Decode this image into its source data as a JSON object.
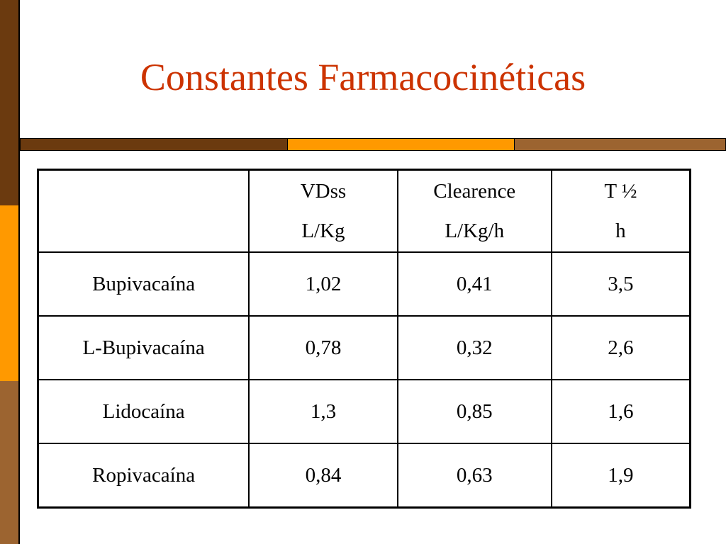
{
  "title": "Constantes Farmacocinéticas",
  "table": {
    "header": [
      [
        "VDss",
        "L/Kg"
      ],
      [
        "Clearence",
        "L/Kg/h"
      ],
      [
        "T ½",
        "h"
      ]
    ],
    "rows": [
      [
        "Bupivacaína",
        "1,02",
        "0,41",
        "3,5"
      ],
      [
        "L-Bupivacaína",
        "0,78",
        "0,32",
        "2,6"
      ],
      [
        "Lidocaína",
        "1,3",
        "0,85",
        "1,6"
      ],
      [
        "Ropivacaína",
        "0,84",
        "0,63",
        "1,9"
      ]
    ]
  }
}
